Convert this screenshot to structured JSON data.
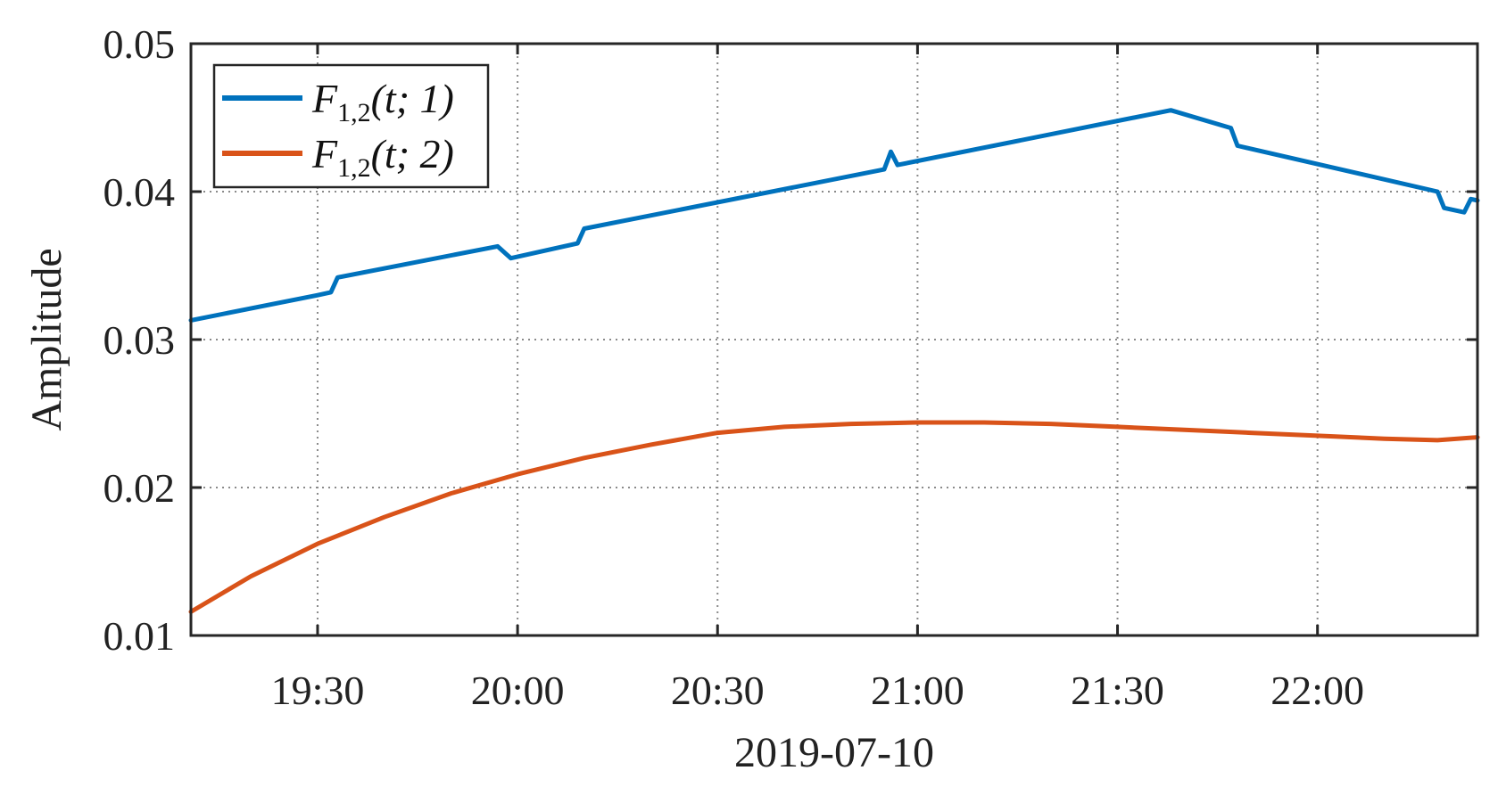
{
  "chart_data": {
    "type": "line",
    "xlabel": "2019-07-10",
    "ylabel": "Amplitude",
    "xlim": [
      "19:11",
      "22:24"
    ],
    "ylim": [
      0.01,
      0.05
    ],
    "x_ticks": [
      "19:30",
      "20:00",
      "20:30",
      "21:00",
      "21:30",
      "22:00"
    ],
    "y_ticks": [
      "0.01",
      "0.02",
      "0.03",
      "0.04",
      "0.05"
    ],
    "grid": true,
    "legend_position": "top-left",
    "series": [
      {
        "name": "F_{1,2}(t;1)",
        "legend_main": "F",
        "legend_sub": "1,2",
        "legend_args": "(t; 1)",
        "color": "#0072BD",
        "points": [
          [
            "19:11",
            0.0313
          ],
          [
            "19:30",
            0.033
          ],
          [
            "19:32",
            0.0332
          ],
          [
            "19:33",
            0.0342
          ],
          [
            "19:57",
            0.0363
          ],
          [
            "19:59",
            0.0355
          ],
          [
            "20:09",
            0.0365
          ],
          [
            "20:10",
            0.0375
          ],
          [
            "20:55",
            0.0415
          ],
          [
            "20:56",
            0.0427
          ],
          [
            "20:57",
            0.0418
          ],
          [
            "21:38",
            0.0455
          ],
          [
            "21:47",
            0.0443
          ],
          [
            "21:48",
            0.0431
          ],
          [
            "22:18",
            0.04
          ],
          [
            "22:19",
            0.0389
          ],
          [
            "22:22",
            0.0386
          ],
          [
            "22:23",
            0.0395
          ],
          [
            "22:24",
            0.0394
          ]
        ]
      },
      {
        "name": "F_{1,2}(t;2)",
        "legend_main": "F",
        "legend_sub": "1,2",
        "legend_args": "(t; 2)",
        "color": "#D95319",
        "points": [
          [
            "19:11",
            0.0116
          ],
          [
            "19:20",
            0.014
          ],
          [
            "19:30",
            0.0162
          ],
          [
            "19:40",
            0.018
          ],
          [
            "19:50",
            0.0196
          ],
          [
            "20:00",
            0.0209
          ],
          [
            "20:10",
            0.022
          ],
          [
            "20:20",
            0.0229
          ],
          [
            "20:30",
            0.0237
          ],
          [
            "20:40",
            0.0241
          ],
          [
            "20:50",
            0.0243
          ],
          [
            "21:00",
            0.0244
          ],
          [
            "21:10",
            0.0244
          ],
          [
            "21:20",
            0.0243
          ],
          [
            "21:30",
            0.0241
          ],
          [
            "21:40",
            0.0239
          ],
          [
            "21:50",
            0.0237
          ],
          [
            "22:00",
            0.0235
          ],
          [
            "22:10",
            0.0233
          ],
          [
            "22:18",
            0.0232
          ],
          [
            "22:24",
            0.0234
          ]
        ]
      }
    ]
  }
}
